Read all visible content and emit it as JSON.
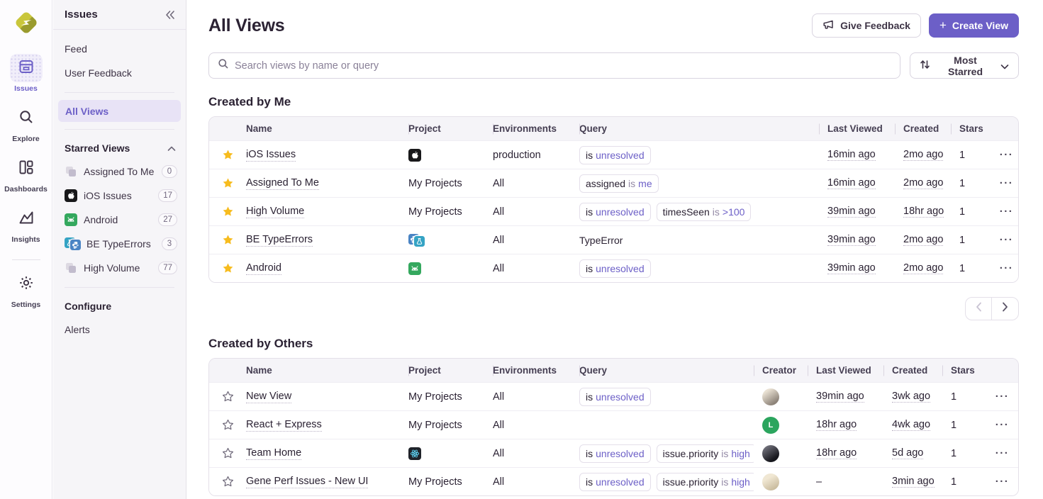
{
  "rail": {
    "logo_icon": "sentry-logo-icon",
    "items": [
      {
        "label": "Issues",
        "icon": "issues-inbox-icon",
        "active": true
      },
      {
        "label": "Explore",
        "icon": "magnifier-icon",
        "active": false
      },
      {
        "label": "Dashboards",
        "icon": "dashboard-grid-icon",
        "active": false
      },
      {
        "label": "Insights",
        "icon": "line-chart-icon",
        "active": false
      },
      {
        "label": "Settings",
        "icon": "gear-icon",
        "active": false
      }
    ]
  },
  "sidebar": {
    "title": "Issues",
    "collapse_icon": "double-chevron-left-icon",
    "items": [
      {
        "label": "Feed"
      },
      {
        "label": "User Feedback"
      }
    ],
    "selected_item": "All Views",
    "sections": {
      "starred": {
        "header": "Starred Views",
        "collapse_icon": "chevron-up-icon",
        "items": [
          {
            "label": "Assigned To Me",
            "count": "0",
            "icon": "stacked-squares-icon"
          },
          {
            "label": "iOS Issues",
            "count": "17",
            "icon": "apple-project-icon"
          },
          {
            "label": "Android",
            "count": "27",
            "icon": "android-project-icon"
          },
          {
            "label": "BE TypeErrors",
            "count": "3",
            "icon": "python-teal-project-icon"
          },
          {
            "label": "High Volume",
            "count": "77",
            "icon": "stacked-squares-icon"
          }
        ]
      },
      "configure": {
        "header": "Configure",
        "items": [
          {
            "label": "Alerts"
          }
        ]
      }
    }
  },
  "header": {
    "title": "All Views",
    "buttons": {
      "give_feedback": "Give Feedback",
      "create_view": "Create View",
      "give_feedback_icon": "megaphone-icon",
      "create_view_icon": "plus-icon"
    }
  },
  "toolbar": {
    "search_placeholder": "Search views by name or query",
    "search_icon": "search-icon",
    "sort_label": "Most Starred",
    "sort_icon": "sort-arrows-icon",
    "sort_chevron": "chevron-down-icon"
  },
  "colors": {
    "accent": "#6C5FC7",
    "star": "#F7BC1E",
    "android_green": "#34A85E",
    "react_blue": "#61DAFB",
    "sidebar_bg": "#F6F5F8"
  },
  "pager": {
    "prev_icon": "chevron-left-icon",
    "next_icon": "chevron-right-icon"
  },
  "sections": [
    {
      "title": "Created by Me",
      "columns": [
        "Name",
        "Project",
        "Environments",
        "Query",
        "Last Viewed",
        "Created",
        "Stars"
      ],
      "has_creator": false,
      "rows": [
        {
          "starred": true,
          "name": "iOS Issues",
          "project": {
            "kind": "icons",
            "icons": [
              "apple-project-icon"
            ]
          },
          "environments": "production",
          "query": [
            {
              "chip": true,
              "segments": [
                {
                  "t": "is",
                  "tone": "dark"
                },
                {
                  "t": "unresolved",
                  "tone": "purple"
                }
              ]
            }
          ],
          "last_viewed": "16min ago",
          "created": "2mo ago",
          "stars": "1"
        },
        {
          "starred": true,
          "name": "Assigned To Me",
          "project": {
            "kind": "text",
            "label": "My Projects"
          },
          "environments": "All",
          "query": [
            {
              "chip": true,
              "segments": [
                {
                  "t": "assigned",
                  "tone": "dark"
                },
                {
                  "t": "is",
                  "tone": "muted"
                },
                {
                  "t": "me",
                  "tone": "purple"
                }
              ]
            }
          ],
          "last_viewed": "16min ago",
          "created": "2mo ago",
          "stars": "1"
        },
        {
          "starred": true,
          "name": "High Volume",
          "project": {
            "kind": "text",
            "label": "My Projects"
          },
          "environments": "All",
          "query": [
            {
              "chip": true,
              "segments": [
                {
                  "t": "is",
                  "tone": "dark"
                },
                {
                  "t": "unresolved",
                  "tone": "purple"
                }
              ]
            },
            {
              "chip": true,
              "segments": [
                {
                  "t": "timesSeen",
                  "tone": "dark"
                },
                {
                  "t": "is",
                  "tone": "muted"
                },
                {
                  "t": ">100",
                  "tone": "purple"
                }
              ]
            }
          ],
          "last_viewed": "39min ago",
          "created": "18hr ago",
          "stars": "1"
        },
        {
          "starred": true,
          "name": "BE TypeErrors",
          "project": {
            "kind": "icons",
            "icons": [
              "python-project-icon",
              "flask-teal-project-icon"
            ]
          },
          "environments": "All",
          "query": [
            {
              "chip": false,
              "segments": [
                {
                  "t": "TypeError",
                  "tone": "dark"
                }
              ]
            }
          ],
          "last_viewed": "39min ago",
          "created": "2mo ago",
          "stars": "1"
        },
        {
          "starred": true,
          "name": "Android",
          "project": {
            "kind": "icons",
            "icons": [
              "android-project-icon"
            ]
          },
          "environments": "All",
          "query": [
            {
              "chip": true,
              "segments": [
                {
                  "t": "is",
                  "tone": "dark"
                },
                {
                  "t": "unresolved",
                  "tone": "purple"
                }
              ]
            }
          ],
          "last_viewed": "39min ago",
          "created": "2mo ago",
          "stars": "1"
        }
      ]
    },
    {
      "title": "Created by Others",
      "columns": [
        "Name",
        "Project",
        "Environments",
        "Query",
        "Creator",
        "Last Viewed",
        "Created",
        "Stars"
      ],
      "has_creator": true,
      "rows": [
        {
          "starred": false,
          "name": "New View",
          "project": {
            "kind": "text",
            "label": "My Projects"
          },
          "environments": "All",
          "query": [
            {
              "chip": true,
              "segments": [
                {
                  "t": "is",
                  "tone": "dark"
                },
                {
                  "t": "unresolved",
                  "tone": "purple"
                }
              ]
            }
          ],
          "creator": {
            "kind": "photo",
            "tone": "tan"
          },
          "last_viewed": "39min ago",
          "created": "3wk ago",
          "stars": "1"
        },
        {
          "starred": false,
          "name": "React + Express",
          "project": {
            "kind": "text",
            "label": "My Projects"
          },
          "environments": "All",
          "query": [],
          "creator": {
            "kind": "letter",
            "letter": "L",
            "bg": "#2BA55E"
          },
          "last_viewed": "18hr ago",
          "created": "4wk ago",
          "stars": "1"
        },
        {
          "starred": false,
          "name": "Team Home",
          "project": {
            "kind": "icons",
            "icons": [
              "react-project-icon"
            ]
          },
          "environments": "All",
          "query": [
            {
              "chip": true,
              "segments": [
                {
                  "t": "is",
                  "tone": "dark"
                },
                {
                  "t": "unresolved",
                  "tone": "purple"
                }
              ]
            },
            {
              "chip": true,
              "segments": [
                {
                  "t": "issue.priority",
                  "tone": "dark"
                },
                {
                  "t": "is",
                  "tone": "muted"
                },
                {
                  "t": "high",
                  "tone": "purple"
                }
              ]
            }
          ],
          "creator": {
            "kind": "photo",
            "tone": "dark"
          },
          "last_viewed": "18hr ago",
          "created": "5d ago",
          "stars": "1"
        },
        {
          "starred": false,
          "name": "Gene Perf Issues - New UI",
          "project": {
            "kind": "text",
            "label": "My Projects"
          },
          "environments": "All",
          "query": [
            {
              "chip": true,
              "segments": [
                {
                  "t": "is",
                  "tone": "dark"
                },
                {
                  "t": "unresolved",
                  "tone": "purple"
                }
              ]
            },
            {
              "chip": true,
              "segments": [
                {
                  "t": "issue.priority",
                  "tone": "dark"
                },
                {
                  "t": "is",
                  "tone": "muted"
                },
                {
                  "t": "high",
                  "tone": "purple"
                }
              ]
            }
          ],
          "creator": {
            "kind": "photo",
            "tone": "beige"
          },
          "last_viewed": "-",
          "created": "3min ago",
          "stars": "1"
        }
      ]
    }
  ]
}
